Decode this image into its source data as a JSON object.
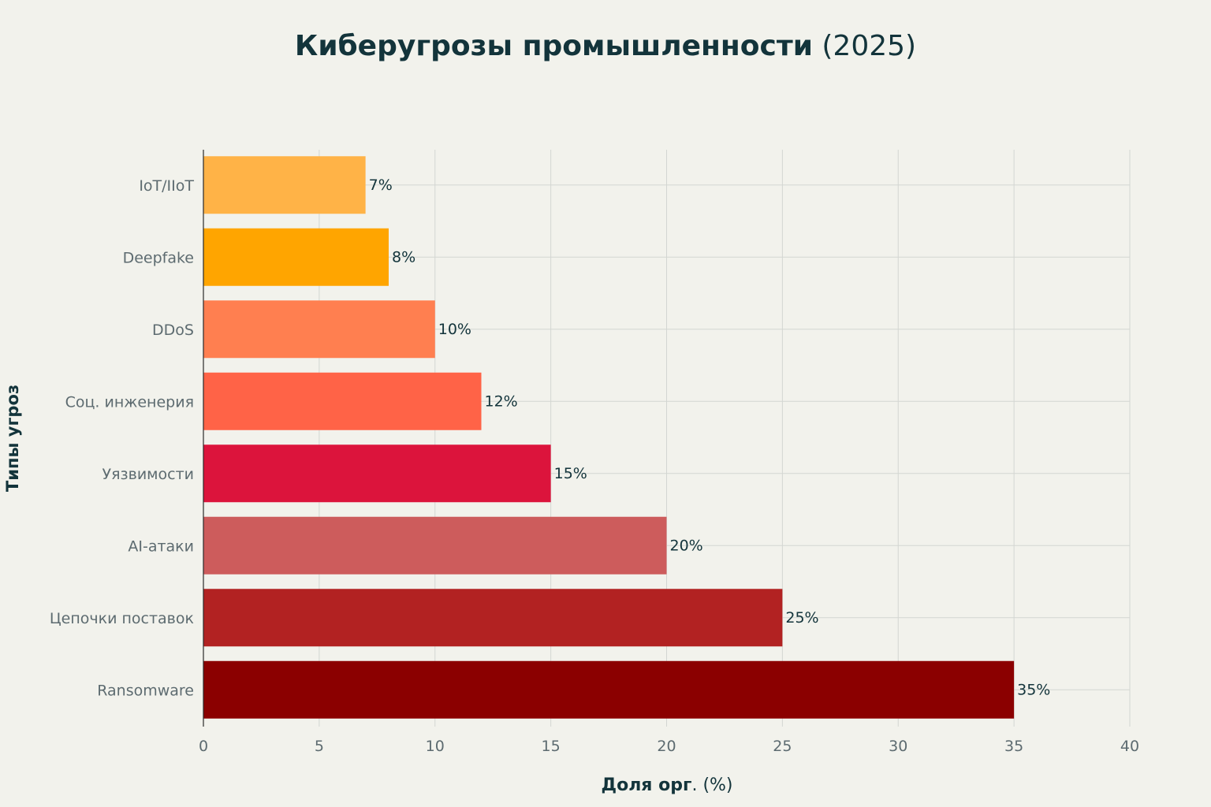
{
  "chart_data": {
    "type": "bar",
    "orientation": "horizontal",
    "title": "Киберугрозы промышленности (2025)",
    "title_bold": "Киберугрозы промышленности",
    "title_rest": " (2025)",
    "xlabel": "Доля орг. (%)",
    "xlabel_bold": "Доля орг",
    "xlabel_rest": ". (%)",
    "ylabel": "Типы угроз",
    "xlim": [
      0,
      40
    ],
    "xticks": [
      0,
      5,
      10,
      15,
      20,
      25,
      30,
      35,
      40
    ],
    "grid": true,
    "categories": [
      "IoT/IIoT",
      "Deepfake",
      "DDoS",
      "Соц. инженерия",
      "Уязвимости",
      "AI-атаки",
      "Цепочки поставок",
      "Ransomware"
    ],
    "values": [
      7,
      8,
      10,
      12,
      15,
      20,
      25,
      35
    ],
    "data_labels": [
      "7%",
      "8%",
      "10%",
      "12%",
      "15%",
      "20%",
      "25%",
      "35%"
    ],
    "colors": [
      "#ffb347",
      "#ffa500",
      "#ff7f50",
      "#ff6347",
      "#dc143c",
      "#cd5c5c",
      "#b22222",
      "#8b0000"
    ]
  }
}
